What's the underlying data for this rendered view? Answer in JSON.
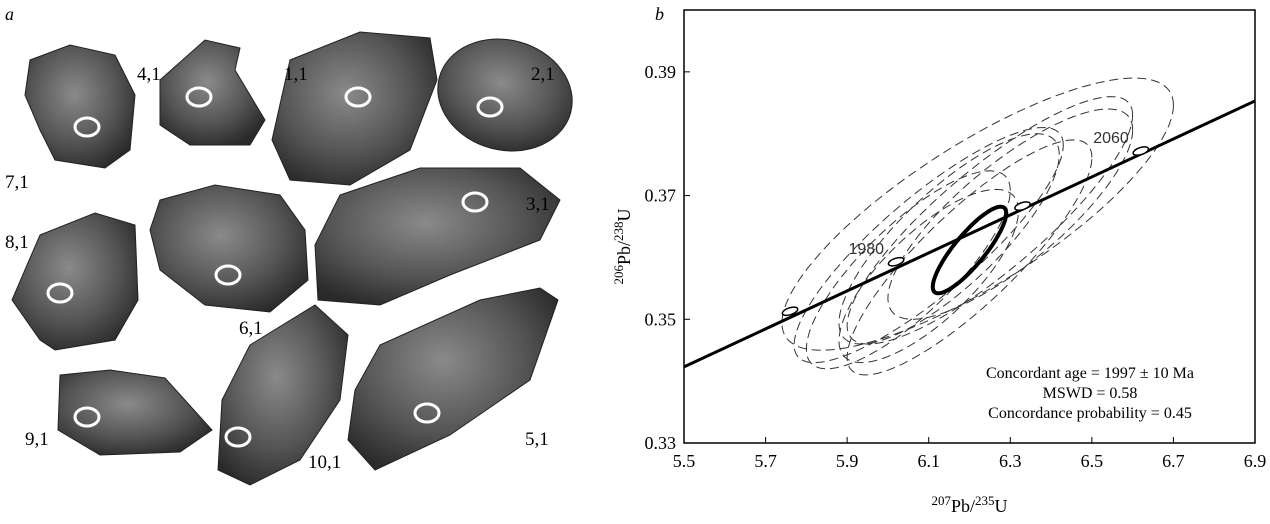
{
  "panel_a": {
    "label": "a",
    "grains": [
      "7,1",
      "4,1",
      "1,1",
      "2,1",
      "8,1",
      "6,1",
      "3,1",
      "9,1",
      "10,1",
      "5,1"
    ]
  },
  "chart_data": {
    "type": "concordia",
    "panel_label": "b",
    "x_label": [
      "207",
      "Pb/",
      "235",
      "U"
    ],
    "y_label": [
      "206",
      "Pb/",
      "238",
      "U"
    ],
    "xlim": [
      5.5,
      6.9
    ],
    "xticks": [
      5.5,
      5.7,
      5.9,
      6.1,
      6.3,
      6.5,
      6.7,
      6.9
    ],
    "ylim": [
      0.33,
      0.4
    ],
    "yticks": [
      0.33,
      0.35,
      0.37,
      0.39
    ],
    "concordia": {
      "x": [
        5.5,
        6.9
      ],
      "y": [
        0.3423,
        0.3853
      ],
      "color": "#000000"
    },
    "age_markers": {
      "x": [
        5.76,
        6.02,
        6.33,
        6.62
      ],
      "y": [
        0.3513,
        0.3593,
        0.3683,
        0.3772
      ],
      "labels": [
        null,
        "1980",
        null,
        "2060"
      ]
    },
    "ellipses": [
      {
        "cx": 6.22,
        "cy": 0.367,
        "sx": 0.48,
        "sy": 0.022,
        "rho": 0.8
      },
      {
        "cx": 6.1,
        "cy": 0.362,
        "sx": 0.33,
        "sy": 0.019,
        "rho": 0.85
      },
      {
        "cx": 6.25,
        "cy": 0.366,
        "sx": 0.35,
        "sy": 0.02,
        "rho": 0.85
      },
      {
        "cx": 6.15,
        "cy": 0.363,
        "sx": 0.27,
        "sy": 0.017,
        "rho": 0.8
      },
      {
        "cx": 6.05,
        "cy": 0.358,
        "sx": 0.25,
        "sy": 0.016,
        "rho": 0.8
      },
      {
        "cx": 6.2,
        "cy": 0.36,
        "sx": 0.3,
        "sy": 0.019,
        "rho": 0.85
      },
      {
        "cx": 6.3,
        "cy": 0.367,
        "sx": 0.3,
        "sy": 0.017,
        "rho": 0.8
      },
      {
        "cx": 6.1,
        "cy": 0.357,
        "sx": 0.22,
        "sy": 0.014,
        "rho": 0.75
      }
    ],
    "concordant_ellipse": {
      "cx": 6.2,
      "cy": 0.3612,
      "sx": 0.09,
      "sy": 0.007,
      "rho": 0.85
    },
    "annotations": [
      "Concordant age = 1997 ± 10 Ma",
      "MSWD = 0.58",
      "Concordance probability = 0.45"
    ]
  }
}
